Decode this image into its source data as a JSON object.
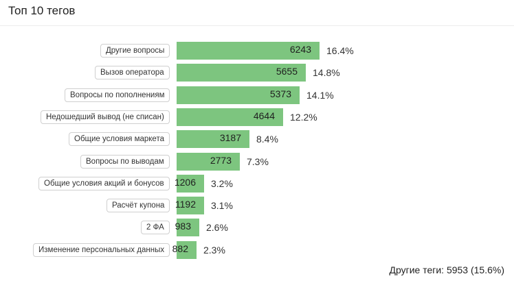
{
  "title": "Топ 10 тегов",
  "chart_data": {
    "type": "bar",
    "orientation": "horizontal",
    "bar_color": "#7dc57f",
    "categories": [
      "Другие вопросы",
      "Вызов оператора",
      "Вопросы по пополнениям",
      "Недошедший вывод (не списан)",
      "Общие условия маркета",
      "Вопросы по выводам",
      "Общие условия акций и бонусов",
      "Расчёт купона",
      "2 ФА",
      "Изменение персональных данных"
    ],
    "values": [
      6243,
      5655,
      5373,
      4644,
      3187,
      2773,
      1206,
      1192,
      983,
      882
    ],
    "percent_labels": [
      "16.4%",
      "14.8%",
      "14.1%",
      "12.2%",
      "8.4%",
      "7.3%",
      "3.2%",
      "3.1%",
      "2.6%",
      "2.3%"
    ]
  },
  "footer": {
    "other_tags": "Другие теги: 5953 (15.6%)"
  }
}
